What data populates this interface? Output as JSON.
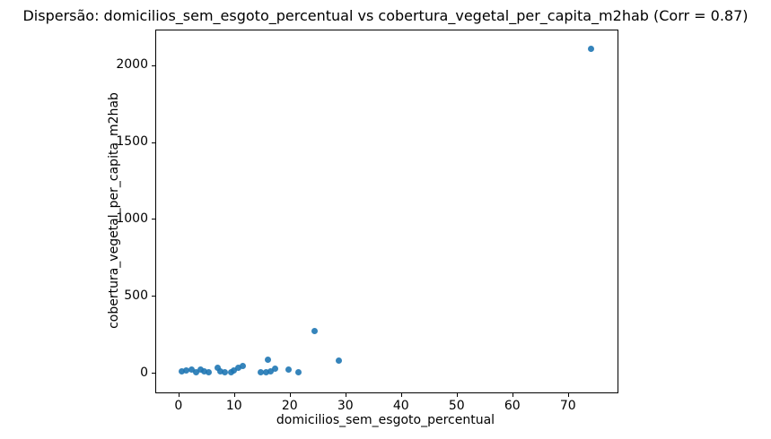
{
  "figure": {
    "background_color": "#ffffff",
    "text_color": "#000000"
  },
  "chart_data": {
    "type": "scatter",
    "title": "Dispersão: domicilios_sem_esgoto_percentual vs cobertura_vegetal_per_capita_m2hab (Corr = 0.87)",
    "xlabel": "domicilios_sem_esgoto_percentual",
    "ylabel": "cobertura_vegetal_per_capita_m2hab",
    "correlation": 0.87,
    "marker_color": "#1f77b4",
    "grid": false,
    "legend_position": "none",
    "xlim": [
      -4.0,
      78.9
    ],
    "ylim": [
      -128,
      2227
    ],
    "x_ticks": [
      0,
      10,
      20,
      30,
      40,
      50,
      60,
      70
    ],
    "y_ticks": [
      0,
      500,
      1000,
      1500,
      2000
    ],
    "points": [
      [
        0.6,
        8
      ],
      [
        1.4,
        12
      ],
      [
        2.3,
        18
      ],
      [
        3.2,
        5
      ],
      [
        4.0,
        22
      ],
      [
        4.7,
        10
      ],
      [
        5.5,
        4
      ],
      [
        7.1,
        30
      ],
      [
        7.6,
        10
      ],
      [
        8.4,
        2
      ],
      [
        9.4,
        5
      ],
      [
        10.0,
        16
      ],
      [
        10.8,
        30
      ],
      [
        11.5,
        45
      ],
      [
        14.8,
        3
      ],
      [
        15.8,
        2
      ],
      [
        16.1,
        85
      ],
      [
        16.5,
        10
      ],
      [
        17.4,
        25
      ],
      [
        19.8,
        20
      ],
      [
        21.5,
        6
      ],
      [
        24.4,
        270
      ],
      [
        28.8,
        80
      ],
      [
        74.2,
        2110
      ]
    ]
  }
}
